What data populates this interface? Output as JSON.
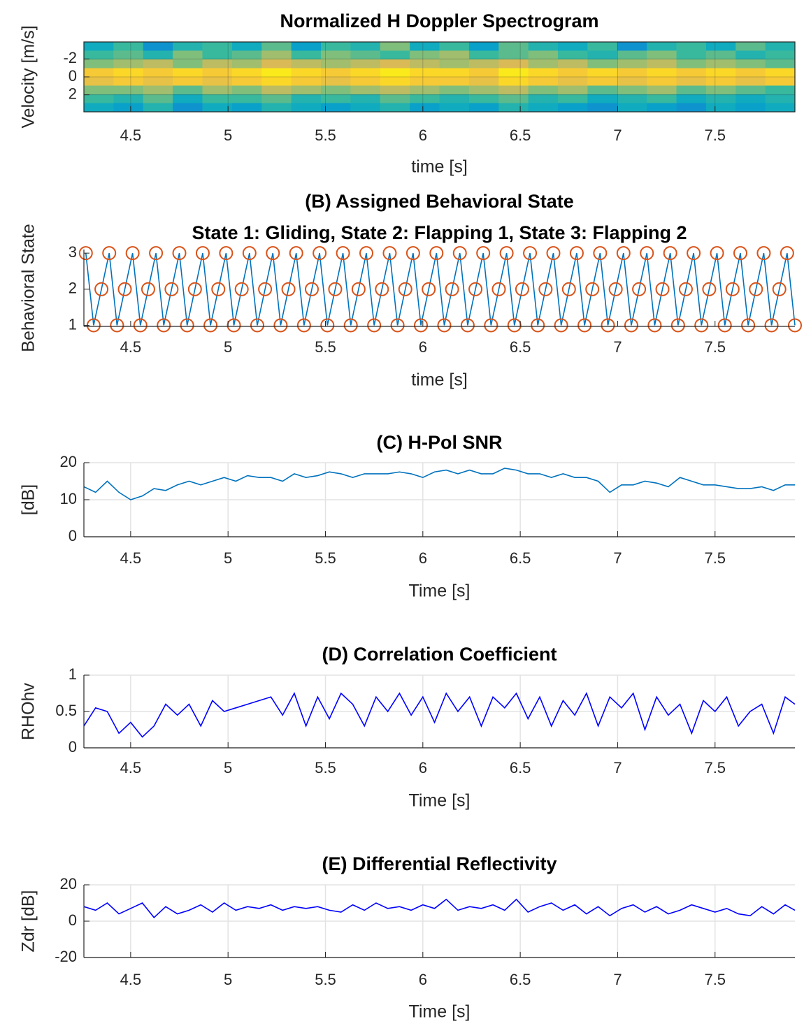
{
  "chart_data": [
    {
      "type": "heatmap",
      "title": "Normalized H Doppler Spectrogram",
      "xlabel": "time [s]",
      "ylabel": "Velocity [m/s]",
      "xlim": [
        4.26,
        7.91
      ],
      "xticks": [
        4.5,
        5,
        5.5,
        6,
        6.5,
        7,
        7.5
      ],
      "ylim": [
        -3.9,
        3.9
      ],
      "yticks": [
        -2,
        0,
        2
      ],
      "yreverse": true,
      "grid": true,
      "clim": [
        0,
        1
      ],
      "colormap": [
        "#352a87",
        "#0363e1",
        "#1485d4",
        "#06a7c6",
        "#38b99e",
        "#92bf73",
        "#d9ba56",
        "#fcce2e",
        "#f9fb0e"
      ],
      "z": [
        [
          0.4,
          0.5,
          0.3,
          0.45,
          0.5,
          0.4,
          0.55,
          0.35,
          0.5,
          0.45,
          0.6,
          0.4,
          0.5,
          0.35,
          0.55,
          0.45,
          0.4,
          0.5,
          0.3,
          0.45,
          0.5,
          0.4,
          0.55,
          0.45
        ],
        [
          0.5,
          0.55,
          0.45,
          0.6,
          0.5,
          0.55,
          0.65,
          0.5,
          0.6,
          0.55,
          0.5,
          0.6,
          0.65,
          0.5,
          0.55,
          0.6,
          0.5,
          0.45,
          0.55,
          0.6,
          0.5,
          0.55,
          0.45,
          0.5
        ],
        [
          0.6,
          0.65,
          0.7,
          0.6,
          0.7,
          0.65,
          0.75,
          0.7,
          0.65,
          0.7,
          0.75,
          0.7,
          0.65,
          0.7,
          0.75,
          0.65,
          0.7,
          0.6,
          0.65,
          0.7,
          0.6,
          0.65,
          0.6,
          0.55
        ],
        [
          0.85,
          0.9,
          0.85,
          0.9,
          0.85,
          0.9,
          0.95,
          0.9,
          0.85,
          0.9,
          0.95,
          0.9,
          0.9,
          0.85,
          0.95,
          0.9,
          0.85,
          0.9,
          0.85,
          0.9,
          0.85,
          0.9,
          0.85,
          0.9
        ],
        [
          0.8,
          0.85,
          0.8,
          0.85,
          0.8,
          0.85,
          0.9,
          0.85,
          0.8,
          0.85,
          0.9,
          0.85,
          0.85,
          0.8,
          0.9,
          0.85,
          0.8,
          0.85,
          0.8,
          0.85,
          0.8,
          0.85,
          0.8,
          0.85
        ],
        [
          0.6,
          0.6,
          0.65,
          0.55,
          0.65,
          0.6,
          0.7,
          0.65,
          0.6,
          0.65,
          0.7,
          0.65,
          0.6,
          0.65,
          0.7,
          0.6,
          0.65,
          0.55,
          0.6,
          0.65,
          0.55,
          0.6,
          0.55,
          0.5
        ],
        [
          0.5,
          0.45,
          0.55,
          0.4,
          0.5,
          0.5,
          0.55,
          0.45,
          0.5,
          0.45,
          0.55,
          0.5,
          0.45,
          0.5,
          0.55,
          0.45,
          0.5,
          0.4,
          0.45,
          0.5,
          0.4,
          0.45,
          0.4,
          0.45
        ],
        [
          0.4,
          0.35,
          0.45,
          0.3,
          0.4,
          0.35,
          0.45,
          0.4,
          0.35,
          0.4,
          0.45,
          0.35,
          0.4,
          0.35,
          0.45,
          0.4,
          0.35,
          0.3,
          0.4,
          0.35,
          0.3,
          0.4,
          0.35,
          0.4
        ]
      ]
    },
    {
      "type": "line",
      "title": "(B) Assigned Behavioral State",
      "subtitle": "State 1: Gliding, State 2: Flapping 1, State 3: Flapping 2",
      "xlabel": "time [s]",
      "ylabel": "Behavioral State",
      "xlim": [
        4.26,
        7.91
      ],
      "xticks": [
        4.5,
        5,
        5.5,
        6,
        6.5,
        7,
        7.5
      ],
      "ylim": [
        0.97,
        3.1
      ],
      "yticks": [
        1,
        2,
        3
      ],
      "grid": false,
      "color": "#0072bd",
      "marker_color": "#d95319",
      "x": [
        4.27,
        4.31,
        4.35,
        4.39,
        4.43,
        4.47,
        4.51,
        4.55,
        4.59,
        4.63,
        4.67,
        4.71,
        4.75,
        4.79,
        4.83,
        4.87,
        4.91,
        4.95,
        4.99,
        5.03,
        5.07,
        5.11,
        5.15,
        5.19,
        5.23,
        5.27,
        5.31,
        5.35,
        5.39,
        5.43,
        5.47,
        5.51,
        5.55,
        5.59,
        5.63,
        5.67,
        5.71,
        5.75,
        5.79,
        5.83,
        5.87,
        5.91,
        5.95,
        5.99,
        6.03,
        6.07,
        6.11,
        6.15,
        6.19,
        6.23,
        6.27,
        6.31,
        6.35,
        6.39,
        6.43,
        6.47,
        6.51,
        6.55,
        6.59,
        6.63,
        6.67,
        6.71,
        6.75,
        6.79,
        6.83,
        6.87,
        6.91,
        6.95,
        6.99,
        7.03,
        7.07,
        7.11,
        7.15,
        7.19,
        7.23,
        7.27,
        7.31,
        7.35,
        7.39,
        7.43,
        7.47,
        7.51,
        7.55,
        7.59,
        7.63,
        7.67,
        7.71,
        7.75,
        7.79,
        7.83,
        7.87,
        7.91
      ],
      "values": [
        3,
        1,
        2,
        3,
        1,
        2,
        3,
        1,
        2,
        3,
        1,
        2,
        3,
        1,
        2,
        3,
        1,
        2,
        3,
        1,
        2,
        3,
        1,
        2,
        3,
        1,
        2,
        3,
        1,
        2,
        3,
        1,
        2,
        3,
        1,
        2,
        3,
        1,
        2,
        3,
        1,
        2,
        3,
        1,
        2,
        3,
        1,
        2,
        3,
        1,
        2,
        3,
        1,
        2,
        3,
        1,
        2,
        3,
        1,
        2,
        3,
        1,
        2,
        3,
        1,
        2,
        3,
        1,
        2,
        3,
        1,
        2,
        3,
        1,
        2,
        3,
        1,
        2,
        3,
        1,
        2,
        3,
        1,
        2,
        3,
        1,
        2,
        3,
        1,
        2,
        3,
        1
      ]
    },
    {
      "type": "line",
      "title": "(C) H-Pol SNR",
      "xlabel": "Time [s]",
      "ylabel": "[dB]",
      "xlim": [
        4.26,
        7.91
      ],
      "xticks": [
        4.5,
        5,
        5.5,
        6,
        6.5,
        7,
        7.5
      ],
      "ylim": [
        0,
        20
      ],
      "yticks": [
        0,
        10,
        20
      ],
      "grid": true,
      "color": "#0072bd",
      "x": [
        4.26,
        4.32,
        4.38,
        4.44,
        4.5,
        4.56,
        4.62,
        4.68,
        4.74,
        4.8,
        4.86,
        4.92,
        4.98,
        5.04,
        5.1,
        5.16,
        5.22,
        5.28,
        5.34,
        5.4,
        5.46,
        5.52,
        5.58,
        5.64,
        5.7,
        5.76,
        5.82,
        5.88,
        5.94,
        6.0,
        6.06,
        6.12,
        6.18,
        6.24,
        6.3,
        6.36,
        6.42,
        6.48,
        6.54,
        6.6,
        6.66,
        6.72,
        6.78,
        6.84,
        6.9,
        6.96,
        7.02,
        7.08,
        7.14,
        7.2,
        7.26,
        7.32,
        7.38,
        7.44,
        7.5,
        7.56,
        7.62,
        7.68,
        7.74,
        7.8,
        7.86,
        7.91
      ],
      "values": [
        13.5,
        12,
        15,
        12,
        10,
        11,
        13,
        12.5,
        14,
        15,
        14,
        15,
        16,
        15,
        16.5,
        16,
        16,
        15,
        17,
        16,
        16.5,
        17.5,
        17,
        16,
        17,
        17,
        17,
        17.5,
        17,
        16,
        17.5,
        18,
        17,
        18,
        17,
        17,
        18.5,
        18,
        17,
        17,
        16,
        17,
        16,
        16,
        15,
        12,
        14,
        14,
        15,
        14.5,
        13.5,
        16,
        15,
        14,
        14,
        13.5,
        13,
        13,
        13.5,
        12.5,
        14,
        14
      ]
    },
    {
      "type": "line",
      "title": "(D) Correlation Coefficient",
      "xlabel": "Time [s]",
      "ylabel": "RHOhv",
      "xlim": [
        4.26,
        7.91
      ],
      "xticks": [
        4.5,
        5,
        5.5,
        6,
        6.5,
        7,
        7.5
      ],
      "ylim": [
        0,
        1
      ],
      "yticks": [
        0,
        0.5,
        1
      ],
      "grid": true,
      "color": "#0000ff",
      "x": [
        4.26,
        4.32,
        4.38,
        4.44,
        4.5,
        4.56,
        4.62,
        4.68,
        4.74,
        4.8,
        4.86,
        4.92,
        4.98,
        5.04,
        5.1,
        5.16,
        5.22,
        5.28,
        5.34,
        5.4,
        5.46,
        5.52,
        5.58,
        5.64,
        5.7,
        5.76,
        5.82,
        5.88,
        5.94,
        6.0,
        6.06,
        6.12,
        6.18,
        6.24,
        6.3,
        6.36,
        6.42,
        6.48,
        6.54,
        6.6,
        6.66,
        6.72,
        6.78,
        6.84,
        6.9,
        6.96,
        7.02,
        7.08,
        7.14,
        7.2,
        7.26,
        7.32,
        7.38,
        7.44,
        7.5,
        7.56,
        7.62,
        7.68,
        7.74,
        7.8,
        7.86,
        7.91
      ],
      "values": [
        0.3,
        0.55,
        0.5,
        0.2,
        0.35,
        0.15,
        0.3,
        0.6,
        0.45,
        0.6,
        0.3,
        0.65,
        0.5,
        0.55,
        0.6,
        0.65,
        0.7,
        0.45,
        0.75,
        0.3,
        0.7,
        0.4,
        0.75,
        0.6,
        0.3,
        0.7,
        0.5,
        0.75,
        0.45,
        0.7,
        0.35,
        0.75,
        0.5,
        0.7,
        0.3,
        0.7,
        0.55,
        0.75,
        0.4,
        0.7,
        0.3,
        0.65,
        0.45,
        0.75,
        0.3,
        0.7,
        0.55,
        0.75,
        0.25,
        0.7,
        0.45,
        0.6,
        0.2,
        0.65,
        0.5,
        0.7,
        0.3,
        0.5,
        0.6,
        0.2,
        0.7,
        0.6
      ]
    },
    {
      "type": "line",
      "title": "(E) Differential Reflectivity",
      "xlabel": "Time [s]",
      "ylabel": "Zdr [dB]",
      "xlim": [
        4.26,
        7.91
      ],
      "xticks": [
        4.5,
        5,
        5.5,
        6,
        6.5,
        7,
        7.5
      ],
      "ylim": [
        -20,
        20
      ],
      "yticks": [
        -20,
        0,
        20
      ],
      "grid": true,
      "color": "#0000ff",
      "x": [
        4.26,
        4.32,
        4.38,
        4.44,
        4.5,
        4.56,
        4.62,
        4.68,
        4.74,
        4.8,
        4.86,
        4.92,
        4.98,
        5.04,
        5.1,
        5.16,
        5.22,
        5.28,
        5.34,
        5.4,
        5.46,
        5.52,
        5.58,
        5.64,
        5.7,
        5.76,
        5.82,
        5.88,
        5.94,
        6.0,
        6.06,
        6.12,
        6.18,
        6.24,
        6.3,
        6.36,
        6.42,
        6.48,
        6.54,
        6.6,
        6.66,
        6.72,
        6.78,
        6.84,
        6.9,
        6.96,
        7.02,
        7.08,
        7.14,
        7.2,
        7.26,
        7.32,
        7.38,
        7.44,
        7.5,
        7.56,
        7.62,
        7.68,
        7.74,
        7.8,
        7.86,
        7.91
      ],
      "values": [
        8,
        6,
        10,
        4,
        7,
        10,
        2,
        8,
        4,
        6,
        9,
        5,
        10,
        6,
        8,
        7,
        9,
        6,
        8,
        7,
        8,
        6,
        5,
        9,
        6,
        10,
        7,
        8,
        6,
        9,
        7,
        12,
        6,
        8,
        7,
        9,
        6,
        12,
        5,
        8,
        10,
        6,
        9,
        4,
        8,
        3,
        7,
        9,
        5,
        8,
        4,
        6,
        9,
        7,
        5,
        7,
        4,
        3,
        8,
        4,
        9,
        6
      ]
    }
  ]
}
